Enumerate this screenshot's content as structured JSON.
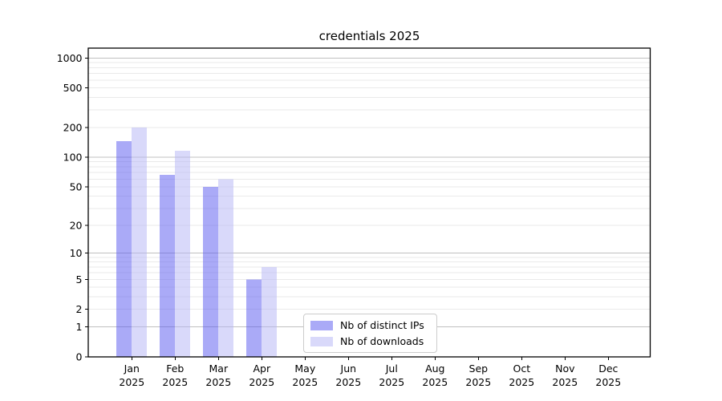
{
  "chart_data": {
    "type": "bar",
    "title": "credentials 2025",
    "categories": [
      "Jan",
      "Feb",
      "Mar",
      "Apr",
      "May",
      "Jun",
      "Jul",
      "Aug",
      "Sep",
      "Oct",
      "Nov",
      "Dec"
    ],
    "category_year": "2025",
    "series": [
      {
        "name": "Nb of distinct IPs",
        "color": "rgba(85,85,240,0.5)",
        "color_effective": "#aaaaf8",
        "values": [
          145,
          66,
          50,
          5,
          0,
          0,
          0,
          0,
          0,
          0,
          0,
          0
        ]
      },
      {
        "name": "Nb of downloads",
        "color": "rgba(180,180,245,0.5)",
        "color_effective": "#d9d9fa",
        "values": [
          200,
          116,
          60,
          7,
          0,
          0,
          0,
          0,
          0,
          0,
          0,
          0
        ]
      }
    ],
    "yscale": "log1p",
    "ylim": [
      0,
      1000
    ],
    "y_ticks": [
      0,
      1,
      2,
      5,
      10,
      20,
      50,
      100,
      200,
      500,
      1000
    ],
    "y_major_grid_values": [
      1,
      10,
      100,
      1000
    ],
    "xlabel": "",
    "ylabel": "",
    "grid": "horizontal",
    "legend_position": "inside-bottom-center",
    "colors": {
      "background": "#ffffff",
      "major_grid": "#c0c0c0",
      "minor_grid": "#eaeaea",
      "spine": "#000000",
      "text": "#000000",
      "legend_border": "#cccccc"
    }
  }
}
